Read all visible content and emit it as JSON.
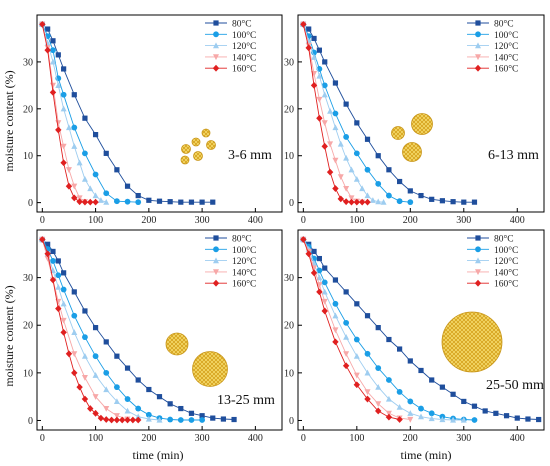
{
  "figure": {
    "ylabel": "moisture content (%)",
    "xlabel": "time (min)"
  },
  "series_styles": [
    {
      "name": "80°C",
      "color": "#1f4e9c",
      "marker": "square"
    },
    {
      "name": "100°C",
      "color": "#1a9ee6",
      "marker": "circle"
    },
    {
      "name": "120°C",
      "color": "#9ecdf0",
      "marker": "triangle-up"
    },
    {
      "name": "140°C",
      "color": "#f7a8a8",
      "marker": "triangle-down"
    },
    {
      "name": "160°C",
      "color": "#e02020",
      "marker": "diamond"
    }
  ],
  "chart_data": [
    {
      "type": "line",
      "annotation": "3-6 mm",
      "icon": "small-particles-icon",
      "xlim": [
        -10,
        450
      ],
      "ylim": [
        -2,
        40
      ],
      "xticks": [
        0,
        100,
        200,
        300,
        400
      ],
      "yticks": [
        0,
        10,
        20,
        30
      ],
      "series": [
        {
          "name": "80°C",
          "x": [
            0,
            10,
            20,
            30,
            40,
            60,
            80,
            100,
            120,
            140,
            160,
            180,
            200,
            220,
            240,
            260,
            280,
            300,
            320
          ],
          "y": [
            38,
            37,
            34.5,
            31.5,
            28.5,
            23,
            18,
            14.5,
            10.5,
            7,
            3.5,
            1.5,
            0.5,
            0.3,
            0.2,
            0.1,
            0.1,
            0.1,
            0.1
          ]
        },
        {
          "name": "100°C",
          "x": [
            0,
            10,
            20,
            30,
            40,
            60,
            80,
            100,
            120,
            140,
            160,
            180
          ],
          "y": [
            38,
            35.5,
            32.5,
            26.5,
            23,
            16,
            10.5,
            6,
            2,
            0.3,
            0.2,
            0.1
          ]
        },
        {
          "name": "120°C",
          "x": [
            0,
            10,
            20,
            30,
            40,
            50,
            60,
            70,
            80,
            90,
            100,
            110,
            120
          ],
          "y": [
            38,
            34,
            30,
            25,
            20,
            16,
            12,
            8.5,
            5,
            3,
            1.5,
            0.5,
            0.1
          ]
        },
        {
          "name": "140°C",
          "x": [
            0,
            10,
            20,
            30,
            40,
            50,
            60,
            70,
            80
          ],
          "y": [
            38,
            33,
            25,
            17,
            12,
            7,
            3.5,
            1,
            0.2
          ]
        },
        {
          "name": "160°C",
          "x": [
            0,
            10,
            20,
            30,
            40,
            50,
            60,
            70,
            80,
            90,
            100
          ],
          "y": [
            38,
            32.5,
            23.5,
            15.5,
            8.5,
            3.5,
            1,
            0.2,
            0.1,
            0.1,
            0.1
          ]
        }
      ]
    },
    {
      "type": "line",
      "annotation": "6-13 mm",
      "icon": "medium-particles-icon",
      "xlim": [
        -10,
        450
      ],
      "ylim": [
        -2,
        40
      ],
      "xticks": [
        0,
        100,
        200,
        300,
        400
      ],
      "yticks": [
        0,
        10,
        20,
        30
      ],
      "series": [
        {
          "name": "80°C",
          "x": [
            0,
            10,
            20,
            30,
            40,
            60,
            80,
            100,
            120,
            140,
            160,
            180,
            200,
            220,
            240,
            260,
            280,
            300,
            320
          ],
          "y": [
            38,
            37,
            35,
            32.5,
            30,
            25.5,
            21,
            17,
            13.5,
            10,
            7,
            4.5,
            2.5,
            1.5,
            0.7,
            0.4,
            0.2,
            0.1,
            0.1
          ]
        },
        {
          "name": "100°C",
          "x": [
            0,
            10,
            20,
            30,
            40,
            60,
            80,
            100,
            120,
            140,
            160,
            180,
            200
          ],
          "y": [
            38,
            35.5,
            32,
            28.5,
            25,
            19,
            14,
            10.5,
            7,
            4,
            1.5,
            0.3,
            0.1
          ]
        },
        {
          "name": "120°C",
          "x": [
            0,
            10,
            20,
            30,
            40,
            50,
            60,
            70,
            80,
            90,
            100,
            110,
            120,
            130,
            140,
            150
          ],
          "y": [
            38,
            34.5,
            31,
            27,
            23,
            19.5,
            16,
            12.5,
            9.5,
            7,
            5,
            3,
            1.5,
            0.5,
            0.2,
            0.1
          ]
        },
        {
          "name": "140°C",
          "x": [
            0,
            10,
            20,
            30,
            40,
            50,
            60,
            70,
            80,
            90,
            100,
            110
          ],
          "y": [
            38,
            33.5,
            27.5,
            22,
            17,
            12.5,
            9,
            5.5,
            3,
            1,
            0.3,
            0.1
          ]
        },
        {
          "name": "160°C",
          "x": [
            0,
            10,
            20,
            30,
            40,
            50,
            60,
            70,
            80,
            90,
            100,
            110,
            120
          ],
          "y": [
            38,
            33,
            25,
            18,
            12,
            6.5,
            3,
            0.8,
            0.2,
            0.1,
            0.1,
            0.1,
            0.1
          ]
        }
      ]
    },
    {
      "type": "line",
      "annotation": "13-25 mm",
      "icon": "large-particles-icon",
      "xlim": [
        -10,
        450
      ],
      "ylim": [
        -2,
        40
      ],
      "xticks": [
        0,
        100,
        200,
        300,
        400
      ],
      "yticks": [
        0,
        10,
        20,
        30
      ],
      "series": [
        {
          "name": "80°C",
          "x": [
            0,
            10,
            20,
            30,
            40,
            60,
            80,
            100,
            120,
            140,
            160,
            180,
            200,
            220,
            240,
            260,
            280,
            300,
            320,
            340,
            360
          ],
          "y": [
            38,
            37,
            35.5,
            33.5,
            31,
            27,
            23,
            19.5,
            16.5,
            13.5,
            11,
            8.5,
            6.5,
            5,
            3.5,
            2.5,
            1.5,
            1,
            0.5,
            0.3,
            0.2
          ]
        },
        {
          "name": "100°C",
          "x": [
            0,
            10,
            20,
            30,
            40,
            60,
            80,
            100,
            120,
            140,
            160,
            180,
            200,
            220,
            240,
            260,
            280,
            300
          ],
          "y": [
            38,
            36,
            33.5,
            30.5,
            27.5,
            22,
            17.5,
            13.5,
            10,
            7,
            4.5,
            2.5,
            1.2,
            0.5,
            0.2,
            0.1,
            0.1,
            0.1
          ]
        },
        {
          "name": "120°C",
          "x": [
            0,
            10,
            20,
            30,
            40,
            60,
            80,
            100,
            120,
            140,
            160,
            180,
            200,
            220
          ],
          "y": [
            38,
            35,
            31.5,
            28,
            24.5,
            18.5,
            13.5,
            9.5,
            6.5,
            4,
            2,
            0.8,
            0.3,
            0.1
          ]
        },
        {
          "name": "140°C",
          "x": [
            0,
            10,
            20,
            30,
            40,
            60,
            80,
            100,
            120,
            140,
            160
          ],
          "y": [
            38,
            34,
            29.5,
            25,
            21,
            14,
            9,
            5,
            2.5,
            1,
            0.3
          ]
        },
        {
          "name": "160°C",
          "x": [
            0,
            10,
            20,
            30,
            40,
            50,
            60,
            70,
            80,
            90,
            100,
            110,
            120,
            130,
            140,
            150,
            160,
            170,
            180
          ],
          "y": [
            38,
            35,
            29.5,
            23.5,
            18.5,
            14,
            10,
            7,
            4.5,
            2.5,
            1.5,
            0.5,
            0.2,
            0.1,
            0.1,
            0.1,
            0.1,
            0.1,
            0.1
          ]
        }
      ]
    },
    {
      "type": "line",
      "annotation": "25-50 mm",
      "icon": "very-large-particle-icon",
      "xlim": [
        -10,
        450
      ],
      "ylim": [
        -2,
        40
      ],
      "xticks": [
        0,
        100,
        200,
        300,
        400
      ],
      "yticks": [
        0,
        10,
        20,
        30
      ],
      "series": [
        {
          "name": "80°C",
          "x": [
            0,
            10,
            20,
            30,
            40,
            60,
            80,
            100,
            120,
            140,
            160,
            180,
            200,
            220,
            240,
            260,
            280,
            300,
            320,
            340,
            360,
            380,
            400,
            420,
            440
          ],
          "y": [
            38,
            37,
            35.5,
            34,
            32,
            29.5,
            27,
            24.5,
            22,
            19.5,
            17,
            15,
            12.5,
            10.5,
            8.5,
            7,
            5.5,
            4,
            3,
            2,
            1.5,
            1,
            0.5,
            0.3,
            0.2
          ]
        },
        {
          "name": "100°C",
          "x": [
            0,
            10,
            20,
            30,
            40,
            60,
            80,
            100,
            120,
            140,
            160,
            180,
            200,
            220,
            240,
            260,
            280,
            300,
            320
          ],
          "y": [
            38,
            36.5,
            34,
            31.5,
            29,
            24.5,
            20.5,
            17,
            14,
            11,
            8.5,
            6,
            4,
            2.5,
            1.5,
            0.8,
            0.4,
            0.2,
            0.1
          ]
        },
        {
          "name": "120°C",
          "x": [
            0,
            10,
            20,
            30,
            40,
            60,
            80,
            100,
            120,
            140,
            160,
            180,
            200,
            220,
            240,
            260,
            280,
            300
          ],
          "y": [
            38,
            36,
            33,
            30,
            27,
            22,
            17.5,
            13.5,
            10,
            7,
            4.5,
            2.8,
            1.5,
            0.8,
            0.4,
            0.2,
            0.1,
            0.1
          ]
        },
        {
          "name": "140°C",
          "x": [
            0,
            10,
            20,
            30,
            40,
            60,
            80,
            100,
            120,
            140,
            160,
            180,
            200
          ],
          "y": [
            38,
            35.5,
            32,
            28.5,
            25,
            19,
            14,
            9.5,
            6,
            3.5,
            1.5,
            0.5,
            0.2
          ]
        },
        {
          "name": "160°C",
          "x": [
            0,
            10,
            20,
            30,
            40,
            60,
            80,
            100,
            120,
            140,
            160,
            180
          ],
          "y": [
            38,
            35,
            31,
            27,
            23,
            16.5,
            11.5,
            7.5,
            4.5,
            2,
            0.7,
            0.2
          ]
        }
      ]
    }
  ]
}
